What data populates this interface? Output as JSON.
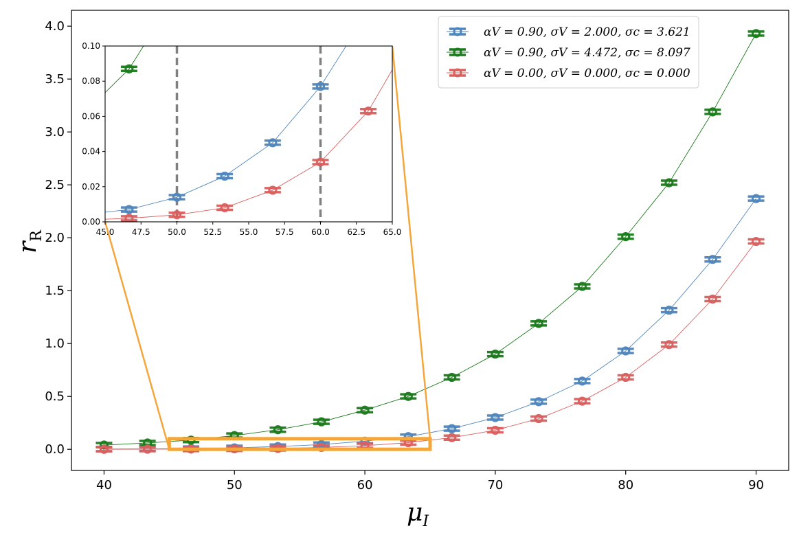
{
  "chart_data": {
    "type": "line",
    "xlabel": "μ",
    "xlabel_sub": "I",
    "ylabel": "r",
    "ylabel_sub": "R",
    "xlim": [
      37.5,
      92.5
    ],
    "ylim": [
      -0.2,
      4.15
    ],
    "xticks": [
      40,
      50,
      60,
      70,
      80,
      90
    ],
    "xtick_labels": [
      "40",
      "50",
      "60",
      "70",
      "80",
      "90"
    ],
    "yticks": [
      0.0,
      0.5,
      1.0,
      1.5,
      2.0,
      2.5,
      3.0,
      3.5,
      4.0
    ],
    "ytick_labels": [
      "0.0",
      "0.5",
      "1.0",
      "1.5",
      "2.0",
      "2.5",
      "3.0",
      "3.5",
      "4.0"
    ],
    "x": [
      40.0,
      43.33,
      46.67,
      50.0,
      53.33,
      56.67,
      60.0,
      63.33,
      66.67,
      70.0,
      73.33,
      76.67,
      80.0,
      83.33,
      86.67,
      90.0
    ],
    "series": [
      {
        "name": "αV = 0.90, σV = 2.000, σc = 3.621",
        "color": "#4f86bd",
        "values": [
          0.002,
          0.004,
          0.007,
          0.014,
          0.026,
          0.045,
          0.077,
          0.12,
          0.195,
          0.3,
          0.45,
          0.645,
          0.93,
          1.315,
          1.795,
          2.37
        ]
      },
      {
        "name": "αV = 0.90, σV = 4.472, σc = 8.097",
        "color": "#1b7a1b",
        "values": [
          0.04,
          0.06,
          0.087,
          0.13,
          0.185,
          0.26,
          0.37,
          0.5,
          0.68,
          0.9,
          1.19,
          1.54,
          2.01,
          2.52,
          3.19,
          3.93
        ]
      },
      {
        "name": "αV = 0.00, σV = 0.000, σc = 0.000",
        "color": "#d9605f",
        "values": [
          0.0,
          0.001,
          0.002,
          0.004,
          0.008,
          0.018,
          0.034,
          0.063,
          0.11,
          0.18,
          0.29,
          0.455,
          0.68,
          0.99,
          1.42,
          1.965
        ]
      }
    ],
    "legend_entries": [
      "αV = 0.90, σV = 2.000, σc = 3.621",
      "αV = 0.90, σV = 4.472, σc = 8.097",
      "αV = 0.00, σV = 0.000, σc = 0.000"
    ],
    "legend_location": "upper right",
    "zoom_box": {
      "x_range": [
        45,
        65
      ],
      "y_range": [
        0.0,
        0.1
      ],
      "color": "#f5a63a"
    },
    "inset": {
      "xlim": [
        45,
        65
      ],
      "ylim": [
        0.0,
        0.1
      ],
      "xticks": [
        45.0,
        47.5,
        50.0,
        52.5,
        55.0,
        57.5,
        60.0,
        62.5,
        65.0
      ],
      "xtick_labels": [
        "45.0",
        "47.5",
        "50.0",
        "52.5",
        "55.0",
        "57.5",
        "60.0",
        "62.5",
        "65.0"
      ],
      "yticks": [
        0.0,
        0.02,
        0.04,
        0.06,
        0.08,
        0.1
      ],
      "ytick_labels": [
        "0.00",
        "0.02",
        "0.04",
        "0.06",
        "0.08",
        "0.10"
      ],
      "vlines": [
        50,
        60
      ],
      "vline_color": "#808080"
    }
  }
}
